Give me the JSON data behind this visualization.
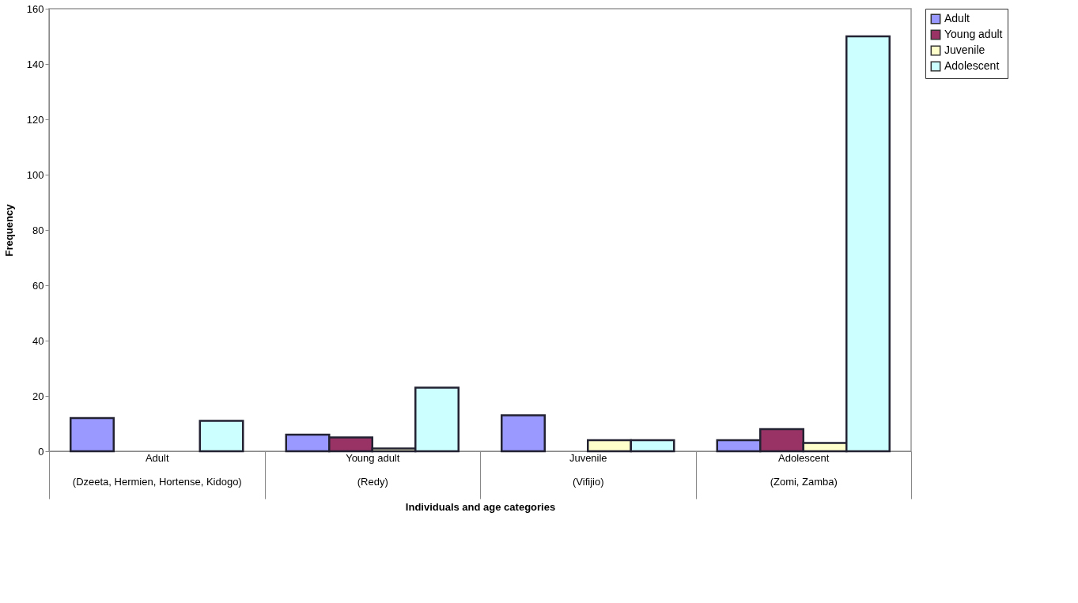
{
  "chart_data": {
    "type": "bar",
    "xlabel": "Individuals and age categories",
    "ylabel": "Frequency",
    "categories": [
      "Adult\n(Dzeeta, Hermien, Hortense, Kidogo)",
      "Young adult\n(Redy)",
      "Juvenile\n(Vifijio)",
      "Adolescent\n(Zomi, Zamba)"
    ],
    "series": [
      {
        "name": "Adult",
        "color": "#9999ff",
        "values": [
          12,
          6,
          13,
          4
        ]
      },
      {
        "name": "Young adult",
        "color": "#993366",
        "values": [
          0,
          5,
          0,
          8
        ]
      },
      {
        "name": "Juvenile",
        "color": "#ffffcc",
        "values": [
          0,
          1,
          4,
          3
        ]
      },
      {
        "name": "Adolescent",
        "color": "#ccffff",
        "values": [
          11,
          23,
          4,
          150
        ]
      }
    ],
    "ylim": [
      0,
      160
    ],
    "yticks": [
      0,
      20,
      40,
      60,
      80,
      100,
      120,
      140,
      160
    ],
    "grid": false,
    "legend": "right"
  }
}
